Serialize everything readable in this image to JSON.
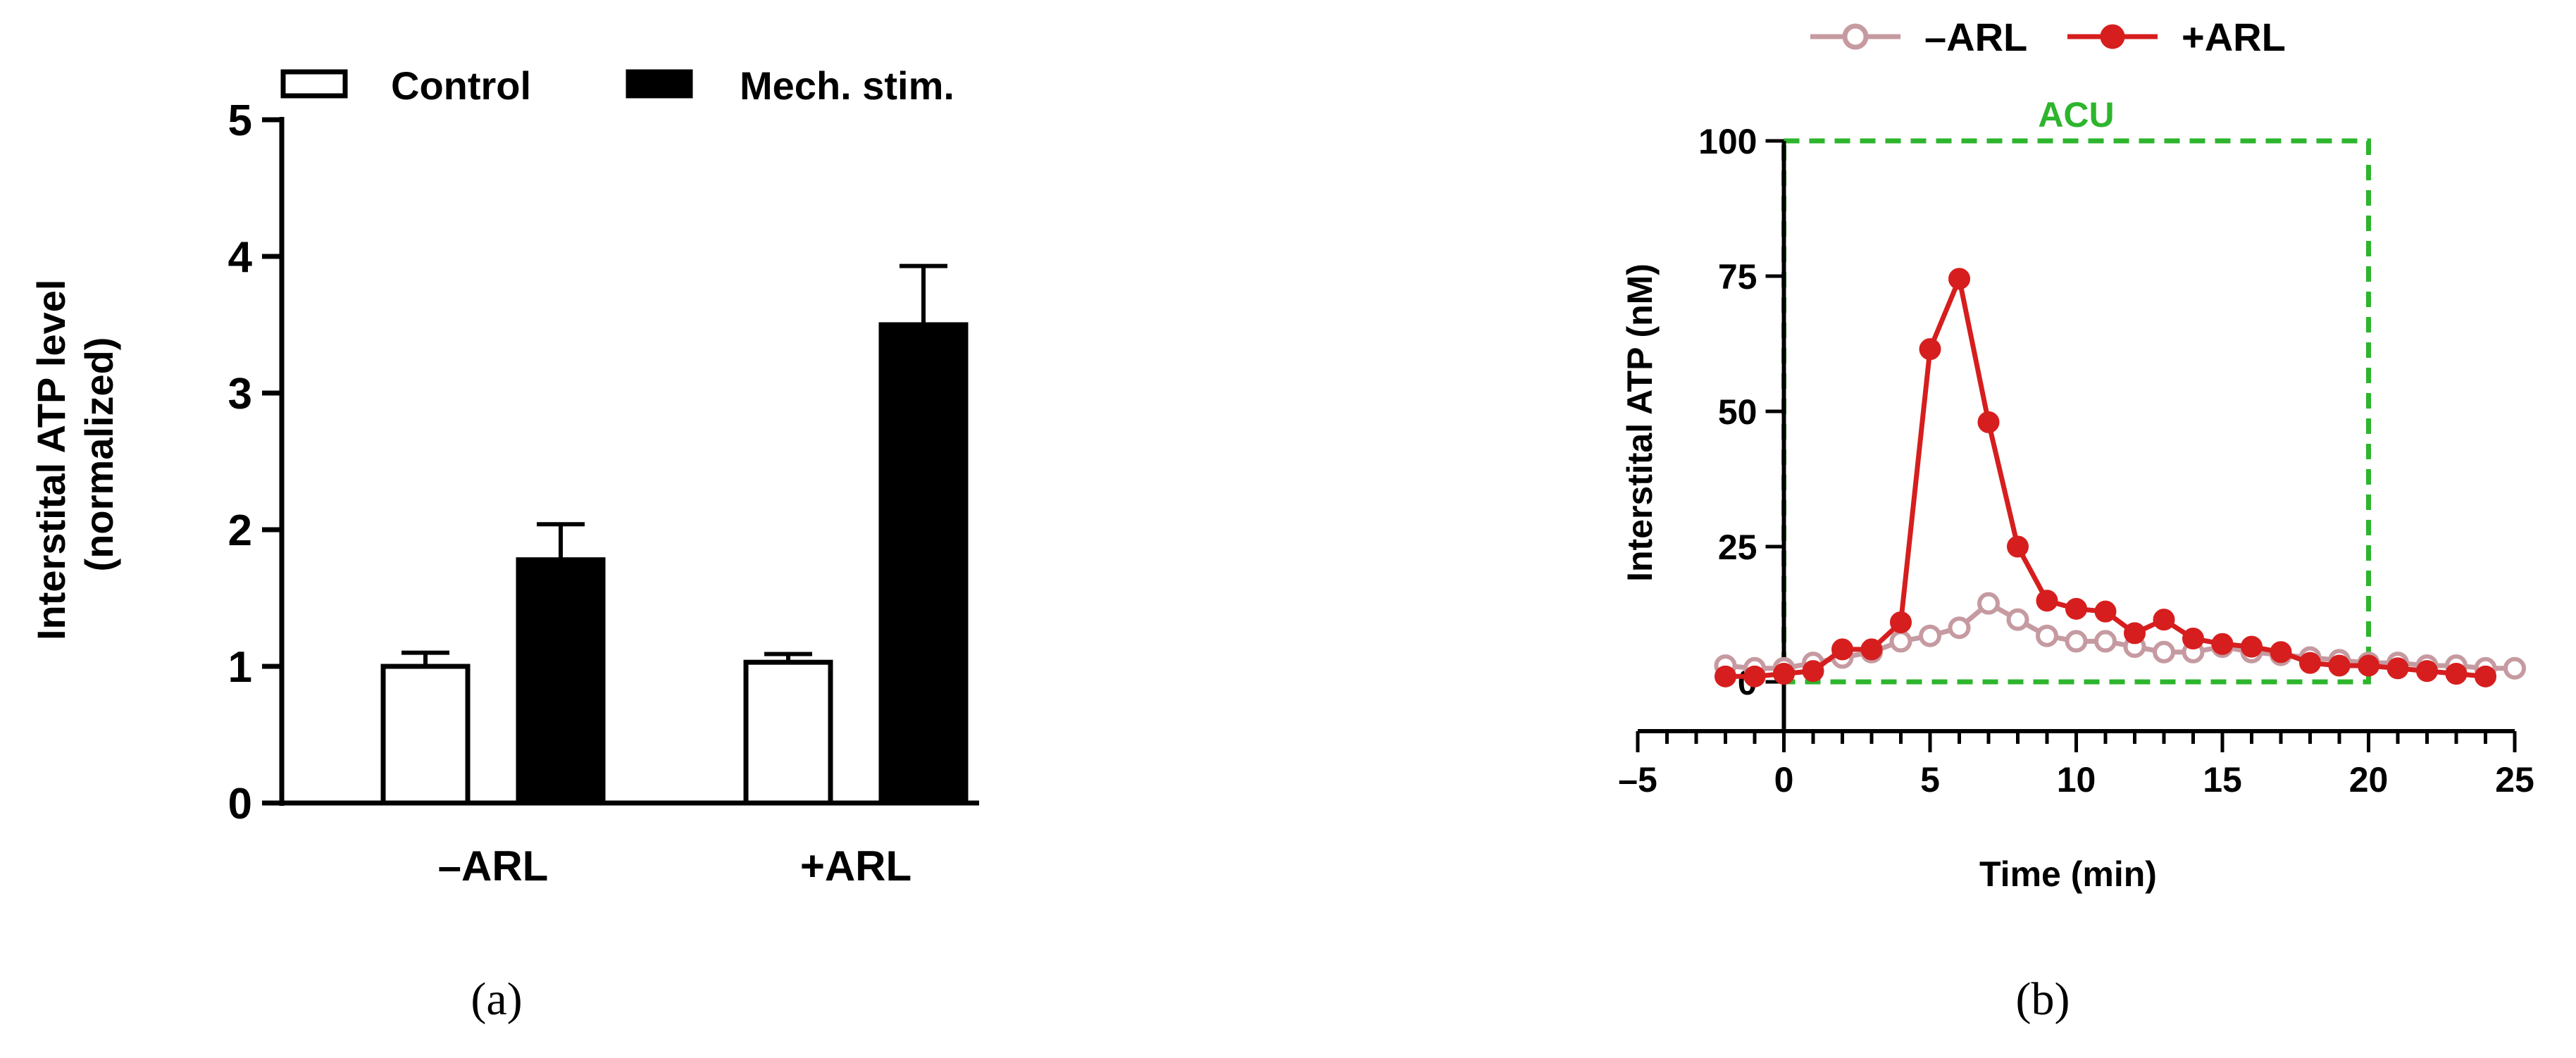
{
  "chart_data": [
    {
      "type": "bar",
      "panel_label": "(a)",
      "ylabel": "Interstital ATP level\n(normalized)",
      "xlabel": "",
      "ylim": [
        0,
        5
      ],
      "yticks": [
        0,
        1,
        2,
        3,
        4,
        5
      ],
      "categories": [
        "–ARL",
        "+ARL"
      ],
      "legend_position": "top",
      "series": [
        {
          "name": "Control",
          "values": [
            1.0,
            1.03
          ],
          "errors": [
            0.1,
            0.06
          ],
          "color": "#ffffff"
        },
        {
          "name": "Mech. stim.",
          "values": [
            1.78,
            3.5
          ],
          "errors": [
            0.26,
            0.43
          ],
          "color": "#000000"
        }
      ]
    },
    {
      "type": "line",
      "panel_label": "(b)",
      "xlabel": "Time (min)",
      "ylabel": "Interstital ATP (nM)",
      "xlim": [
        -5,
        25
      ],
      "ylim": [
        0,
        100
      ],
      "xticks": [
        -5,
        0,
        5,
        10,
        15,
        20,
        25
      ],
      "yticks": [
        0,
        25,
        50,
        75,
        100
      ],
      "legend_position": "top",
      "annotation": {
        "label": "ACU",
        "x_range": [
          0,
          20
        ],
        "y_range": [
          0,
          100
        ],
        "color": "#2db52d"
      },
      "series": [
        {
          "name": "–ARL",
          "color": "#c59aa0",
          "marker": "open-circle",
          "x": [
            -2,
            -1,
            0,
            1,
            2,
            3,
            4,
            5,
            6,
            7,
            8,
            9,
            10,
            11,
            12,
            13,
            14,
            15,
            16,
            17,
            18,
            19,
            20,
            21,
            22,
            23,
            24,
            25
          ],
          "y": [
            3,
            2.5,
            2.5,
            3.5,
            4.5,
            5.5,
            7.5,
            8.5,
            10,
            14.5,
            11.5,
            8.5,
            7.5,
            7.5,
            6.5,
            5.5,
            5.5,
            6.5,
            5.5,
            5,
            4.5,
            4,
            3.5,
            3.5,
            3,
            3,
            2.5,
            2.5
          ]
        },
        {
          "name": "+ARL",
          "color": "#d61e1e",
          "marker": "filled-circle",
          "x": [
            -2,
            -1,
            0,
            1,
            2,
            3,
            4,
            5,
            6,
            7,
            8,
            9,
            10,
            11,
            12,
            13,
            14,
            15,
            16,
            17,
            18,
            19,
            20,
            21,
            22,
            23,
            24
          ],
          "y": [
            1,
            1,
            1.5,
            2,
            6,
            6,
            11,
            61.5,
            74.5,
            48,
            25,
            15,
            13.5,
            13,
            9,
            11.5,
            8,
            7,
            6.5,
            5.5,
            3.5,
            3,
            3,
            2.5,
            2,
            1.5,
            1
          ]
        }
      ]
    }
  ]
}
